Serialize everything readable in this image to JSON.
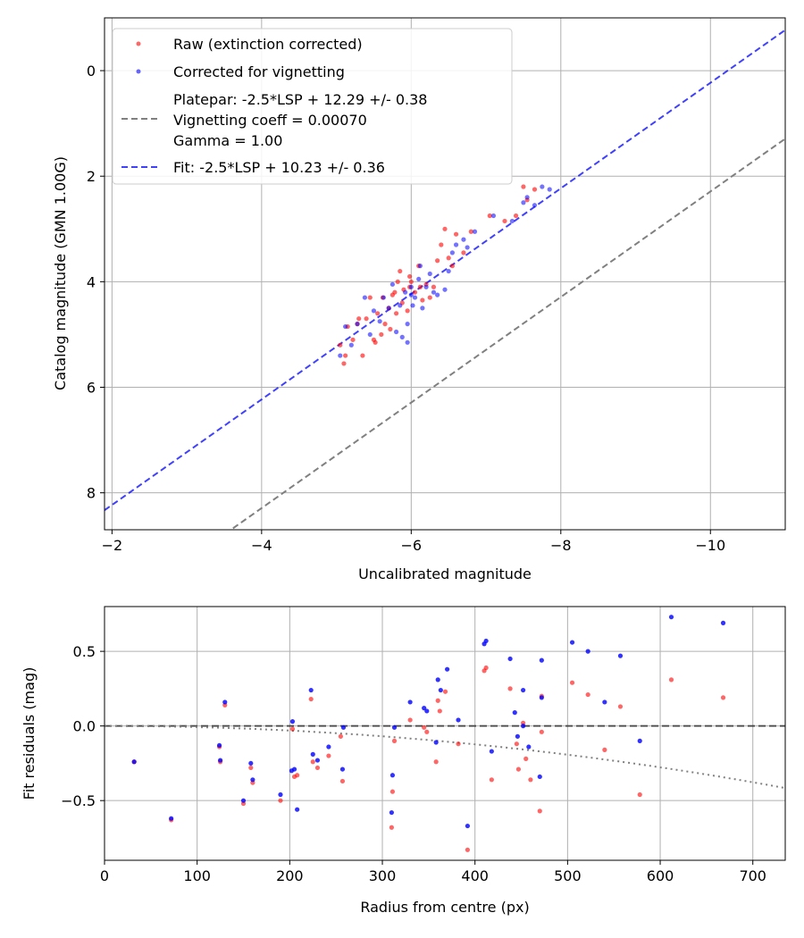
{
  "colors": {
    "raw": "#ff0000",
    "corrected": "#0000ff",
    "platepar": "#808080",
    "fit": "#0000ff",
    "grid": "#b0b0b0"
  },
  "chart_data": [
    {
      "type": "scatter",
      "xlabel": "Uncalibrated magnitude",
      "ylabel": "Catalog magnitude (GMN 1.00G)",
      "xlim": [
        -1.9,
        -11
      ],
      "ylim": [
        8.7,
        -1
      ],
      "xticks": [
        -2,
        -4,
        -6,
        -8,
        -10
      ],
      "xtick_labels": [
        "−2",
        "−4",
        "−6",
        "−8",
        "−10"
      ],
      "yticks": [
        0,
        2,
        4,
        6,
        8
      ],
      "ytick_labels": [
        "0",
        "2",
        "4",
        "6",
        "8"
      ],
      "grid": true,
      "legend": {
        "position": "top-left",
        "entries": [
          {
            "label": "Raw (extinction corrected)"
          },
          {
            "label": "Corrected for vignetting"
          },
          {
            "label_lines": [
              "Platepar: -2.5*LSP + 12.29 +/- 0.38",
              "Vignetting coeff = 0.00070",
              "Gamma = 1.00"
            ]
          },
          {
            "label": "Fit: -2.5*LSP + 10.23 +/- 0.36"
          }
        ]
      },
      "series": [
        {
          "name": "Raw (extinction corrected)",
          "style": "points",
          "color": "#ff0000",
          "points": [
            [
              -5.05,
              5.2
            ],
            [
              -5.1,
              5.55
            ],
            [
              -5.12,
              5.4
            ],
            [
              -5.15,
              4.85
            ],
            [
              -5.22,
              5.1
            ],
            [
              -5.28,
              4.8
            ],
            [
              -5.35,
              5.4
            ],
            [
              -5.4,
              4.7
            ],
            [
              -5.45,
              4.3
            ],
            [
              -5.5,
              5.1
            ],
            [
              -5.52,
              5.15
            ],
            [
              -5.55,
              4.6
            ],
            [
              -5.6,
              5.0
            ],
            [
              -5.62,
              4.3
            ],
            [
              -5.65,
              4.8
            ],
            [
              -5.7,
              4.5
            ],
            [
              -5.72,
              4.9
            ],
            [
              -5.75,
              4.25
            ],
            [
              -5.78,
              4.2
            ],
            [
              -5.8,
              4.6
            ],
            [
              -5.82,
              4.0
            ],
            [
              -5.85,
              3.8
            ],
            [
              -5.88,
              4.4
            ],
            [
              -5.9,
              4.15
            ],
            [
              -5.95,
              4.55
            ],
            [
              -5.98,
              4.1
            ],
            [
              -6.0,
              4.0
            ],
            [
              -6.05,
              4.2
            ],
            [
              -6.1,
              3.7
            ],
            [
              -6.15,
              4.35
            ],
            [
              -6.2,
              4.05
            ],
            [
              -6.25,
              4.3
            ],
            [
              -6.3,
              4.1
            ],
            [
              -6.35,
              3.6
            ],
            [
              -6.4,
              3.3
            ],
            [
              -6.45,
              3.0
            ],
            [
              -6.5,
              3.55
            ],
            [
              -6.55,
              3.7
            ],
            [
              -6.6,
              3.1
            ],
            [
              -6.7,
              3.45
            ],
            [
              -6.8,
              3.05
            ],
            [
              -7.05,
              2.75
            ],
            [
              -7.25,
              2.85
            ],
            [
              -7.4,
              2.75
            ],
            [
              -7.5,
              2.2
            ],
            [
              -7.55,
              2.45
            ],
            [
              -7.65,
              2.25
            ],
            [
              -5.3,
              4.7
            ],
            [
              -5.98,
              3.9
            ],
            [
              -6.12,
              4.1
            ]
          ]
        },
        {
          "name": "Corrected for vignetting",
          "style": "points",
          "color": "#0000ff",
          "points": [
            [
              -5.05,
              5.4
            ],
            [
              -5.12,
              4.85
            ],
            [
              -5.2,
              5.2
            ],
            [
              -5.28,
              4.8
            ],
            [
              -5.38,
              4.3
            ],
            [
              -5.45,
              5.0
            ],
            [
              -5.5,
              4.55
            ],
            [
              -5.58,
              4.75
            ],
            [
              -5.63,
              4.3
            ],
            [
              -5.7,
              4.5
            ],
            [
              -5.75,
              4.05
            ],
            [
              -5.8,
              4.95
            ],
            [
              -5.85,
              4.45
            ],
            [
              -5.88,
              5.05
            ],
            [
              -5.92,
              4.2
            ],
            [
              -5.95,
              4.8
            ],
            [
              -6.0,
              4.1
            ],
            [
              -6.02,
              4.45
            ],
            [
              -6.05,
              4.3
            ],
            [
              -6.1,
              3.95
            ],
            [
              -6.12,
              3.7
            ],
            [
              -6.15,
              4.5
            ],
            [
              -6.2,
              4.1
            ],
            [
              -6.25,
              3.85
            ],
            [
              -6.3,
              4.2
            ],
            [
              -6.35,
              4.25
            ],
            [
              -6.45,
              4.15
            ],
            [
              -6.5,
              3.8
            ],
            [
              -6.55,
              3.45
            ],
            [
              -6.6,
              3.3
            ],
            [
              -6.7,
              3.2
            ],
            [
              -6.75,
              3.35
            ],
            [
              -6.85,
              3.05
            ],
            [
              -7.1,
              2.75
            ],
            [
              -7.35,
              2.85
            ],
            [
              -7.5,
              2.5
            ],
            [
              -7.55,
              2.4
            ],
            [
              -7.65,
              2.55
            ],
            [
              -7.75,
              2.2
            ],
            [
              -7.85,
              2.25
            ],
            [
              -5.95,
              5.15
            ],
            [
              -6.0,
              4.25
            ]
          ]
        },
        {
          "name": "Platepar: -2.5*LSP + 12.29 +/- 0.38",
          "style": "dashed-line",
          "color": "#808080",
          "intercept": 12.29,
          "slope": 1
        },
        {
          "name": "Fit: -2.5*LSP + 10.23 +/- 0.36",
          "style": "dashed-line",
          "color": "#0000ff",
          "intercept": 10.23,
          "slope": 1
        }
      ]
    },
    {
      "type": "scatter",
      "xlabel": "Radius from centre (px)",
      "ylabel": "Fit residuals (mag)",
      "xlim": [
        0,
        735
      ],
      "ylim": [
        -0.9,
        0.8
      ],
      "xticks": [
        0,
        100,
        200,
        300,
        400,
        500,
        600,
        700
      ],
      "xtick_labels": [
        "0",
        "100",
        "200",
        "300",
        "400",
        "500",
        "600",
        "700"
      ],
      "yticks": [
        -0.5,
        0.0,
        0.5
      ],
      "ytick_labels": [
        "−0.5",
        "0.0",
        "0.5"
      ],
      "grid": true,
      "series": [
        {
          "name": "Raw residuals",
          "style": "points",
          "color": "#ff0000",
          "points": [
            [
              32,
              -0.24
            ],
            [
              72,
              -0.63
            ],
            [
              124,
              -0.14
            ],
            [
              125,
              -0.24
            ],
            [
              130,
              0.14
            ],
            [
              150,
              -0.52
            ],
            [
              158,
              -0.28
            ],
            [
              160,
              -0.38
            ],
            [
              190,
              -0.5
            ],
            [
              203,
              -0.02
            ],
            [
              205,
              -0.34
            ],
            [
              208,
              -0.33
            ],
            [
              223,
              0.18
            ],
            [
              225,
              -0.24
            ],
            [
              230,
              -0.28
            ],
            [
              242,
              -0.2
            ],
            [
              255,
              -0.07
            ],
            [
              257,
              -0.37
            ],
            [
              310,
              -0.68
            ],
            [
              311,
              -0.44
            ],
            [
              313,
              -0.1
            ],
            [
              330,
              0.04
            ],
            [
              345,
              -0.01
            ],
            [
              348,
              -0.04
            ],
            [
              360,
              0.17
            ],
            [
              362,
              0.1
            ],
            [
              358,
              -0.24
            ],
            [
              368,
              0.23
            ],
            [
              382,
              -0.12
            ],
            [
              392,
              -0.83
            ],
            [
              410,
              0.37
            ],
            [
              412,
              0.39
            ],
            [
              418,
              -0.36
            ],
            [
              438,
              0.25
            ],
            [
              445,
              -0.12
            ],
            [
              447,
              -0.29
            ],
            [
              452,
              0.02
            ],
            [
              455,
              -0.22
            ],
            [
              460,
              -0.36
            ],
            [
              470,
              -0.57
            ],
            [
              472,
              -0.04
            ],
            [
              472,
              0.2
            ],
            [
              505,
              0.29
            ],
            [
              522,
              0.21
            ],
            [
              540,
              -0.16
            ],
            [
              557,
              0.13
            ],
            [
              578,
              -0.46
            ],
            [
              612,
              0.31
            ],
            [
              668,
              0.19
            ]
          ]
        },
        {
          "name": "Corrected residuals",
          "style": "points",
          "color": "#0000ff",
          "points": [
            [
              32,
              -0.24
            ],
            [
              72,
              -0.62
            ],
            [
              124,
              -0.13
            ],
            [
              125,
              -0.23
            ],
            [
              130,
              0.16
            ],
            [
              150,
              -0.5
            ],
            [
              158,
              -0.25
            ],
            [
              160,
              -0.36
            ],
            [
              190,
              -0.46
            ],
            [
              203,
              0.03
            ],
            [
              202,
              -0.3
            ],
            [
              205,
              -0.29
            ],
            [
              208,
              -0.56
            ],
            [
              223,
              0.24
            ],
            [
              225,
              -0.19
            ],
            [
              230,
              -0.23
            ],
            [
              242,
              -0.14
            ],
            [
              257,
              -0.29
            ],
            [
              258,
              -0.01
            ],
            [
              310,
              -0.58
            ],
            [
              311,
              -0.33
            ],
            [
              313,
              -0.01
            ],
            [
              330,
              0.16
            ],
            [
              345,
              0.12
            ],
            [
              348,
              0.1
            ],
            [
              358,
              -0.11
            ],
            [
              360,
              0.31
            ],
            [
              363,
              0.24
            ],
            [
              370,
              0.38
            ],
            [
              382,
              0.04
            ],
            [
              392,
              -0.67
            ],
            [
              410,
              0.55
            ],
            [
              412,
              0.57
            ],
            [
              418,
              -0.17
            ],
            [
              438,
              0.45
            ],
            [
              443,
              0.09
            ],
            [
              446,
              -0.07
            ],
            [
              452,
              0.24
            ],
            [
              452,
              0.0
            ],
            [
              458,
              -0.14
            ],
            [
              470,
              -0.34
            ],
            [
              472,
              0.44
            ],
            [
              472,
              0.19
            ],
            [
              505,
              0.56
            ],
            [
              522,
              0.5
            ],
            [
              540,
              0.16
            ],
            [
              557,
              0.47
            ],
            [
              578,
              -0.1
            ],
            [
              612,
              0.73
            ],
            [
              668,
              0.69
            ]
          ]
        },
        {
          "name": "Zero line",
          "style": "dashed-line",
          "color": "#000000",
          "value": 0.0
        },
        {
          "name": "Vignetting curve",
          "style": "dotted-curve",
          "color": "#808080",
          "coefficient": 0.0007
        }
      ]
    }
  ]
}
